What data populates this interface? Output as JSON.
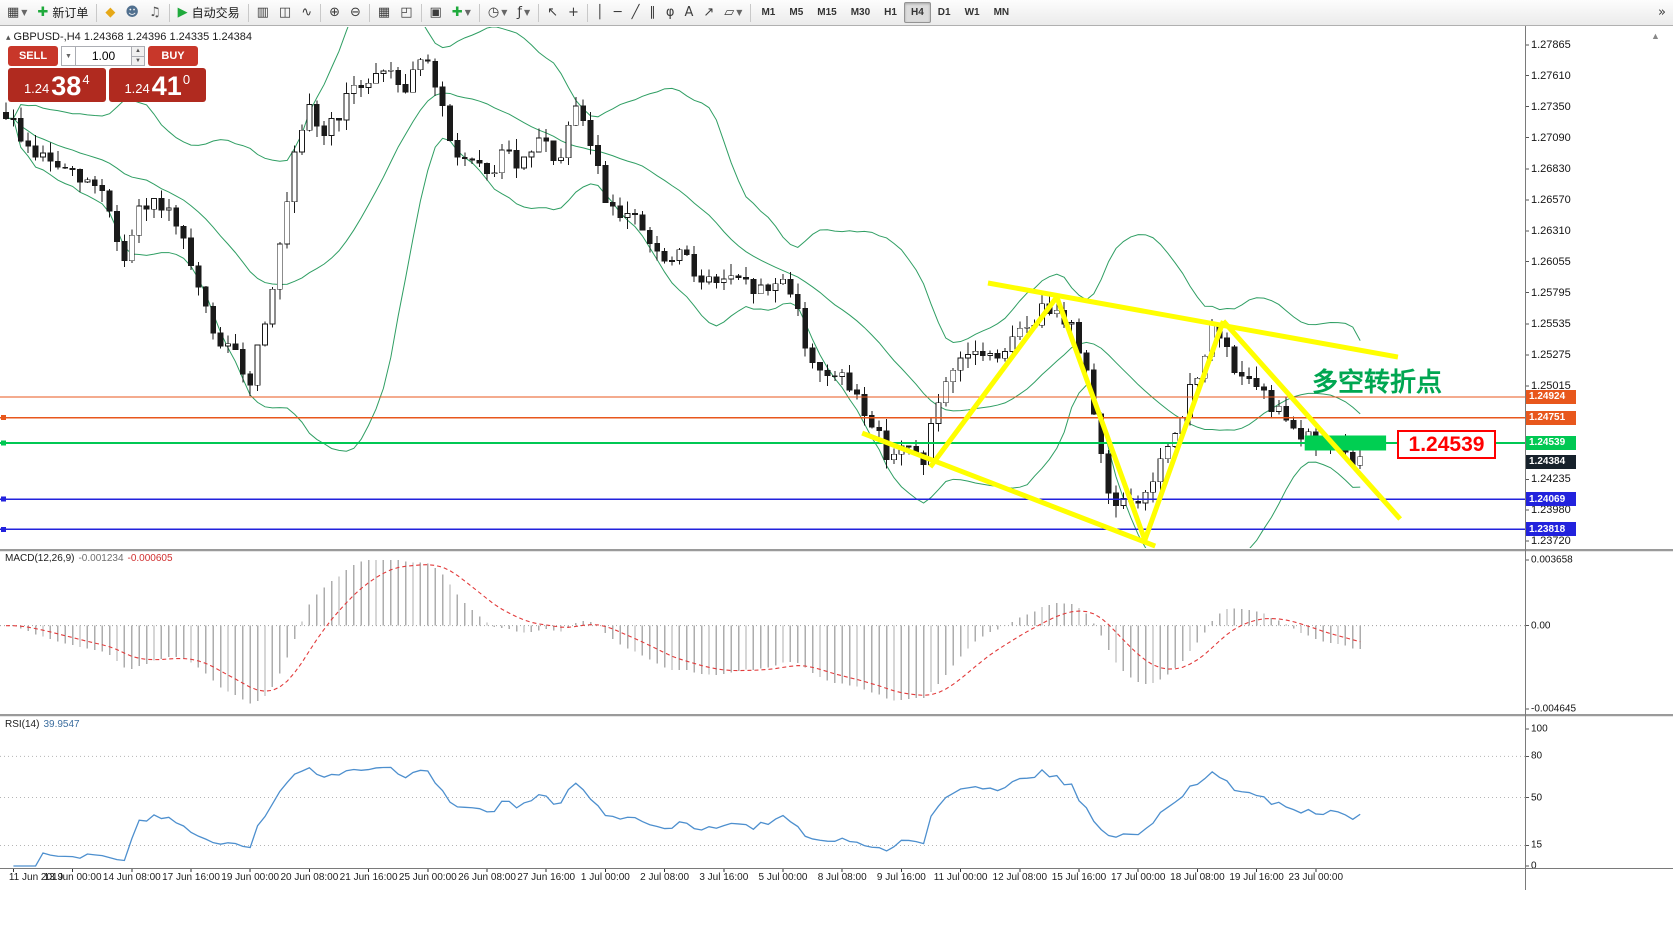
{
  "toolbar": {
    "new_order_label": "新订单",
    "autotrade_label": "自动交易",
    "items": [
      {
        "n": "new-chart-icon",
        "g": "▦",
        "dd": true
      },
      {
        "n": "new-order-button",
        "g": "✚",
        "gc": "#1faa3c",
        "label_key": "new_order_label"
      },
      {
        "sep": true
      },
      {
        "n": "favorites-icon",
        "g": "◆",
        "gc": "#e6a817"
      },
      {
        "n": "profiles-icon",
        "g": "☻",
        "gc": "#51708f"
      },
      {
        "n": "sound-alerts-icon",
        "g": "♫",
        "gc": "#555555"
      },
      {
        "sep": true
      },
      {
        "n": "autotrade-button",
        "g": "▶",
        "gc": "#1faa3c",
        "label_key": "autotrade_label"
      },
      {
        "sep": true
      },
      {
        "n": "bar-chart-icon",
        "g": "▥"
      },
      {
        "n": "candlestick-chart-icon",
        "g": "◫"
      },
      {
        "n": "line-chart-icon",
        "g": "∿"
      },
      {
        "sep": true
      },
      {
        "n": "zoom-in-icon",
        "g": "⊕"
      },
      {
        "n": "zoom-out-icon",
        "g": "⊖"
      },
      {
        "sep": true
      },
      {
        "n": "auto-arrange-icon",
        "g": "▦"
      },
      {
        "n": "tile-windows-icon",
        "g": "◰"
      },
      {
        "sep": true
      },
      {
        "n": "chart-shift-icon",
        "g": "▣"
      },
      {
        "n": "new-order-chart-icon",
        "g": "✚",
        "gc": "#1faa3c",
        "dd": true
      },
      {
        "sep": true
      },
      {
        "n": "periods-icon",
        "g": "◷",
        "dd": true
      },
      {
        "n": "indicators-icon",
        "g": "ƒ",
        "dd": true
      },
      {
        "sep": true
      },
      {
        "n": "cursor-icon",
        "g": "↖"
      },
      {
        "n": "crosshair-icon",
        "g": "+"
      },
      {
        "sep": true
      },
      {
        "n": "vertical-line-icon",
        "g": "│"
      },
      {
        "n": "horizontal-line-icon",
        "g": "─"
      },
      {
        "n": "trendline-icon",
        "g": "╱"
      },
      {
        "n": "channel-icon",
        "g": "∥"
      },
      {
        "n": "fibonacci-icon",
        "g": "φ"
      },
      {
        "n": "text-label-icon",
        "g": "A"
      },
      {
        "n": "arrow-object-icon",
        "g": "↗"
      },
      {
        "n": "shapes-icon",
        "g": "▱",
        "dd": true
      },
      {
        "sep": true
      }
    ],
    "timeframes": [
      "M1",
      "M5",
      "M15",
      "M30",
      "H1",
      "H4",
      "D1",
      "W1",
      "MN"
    ],
    "active_timeframe": "H4",
    "overflow_icon": "»",
    "scroll_icon": "▲"
  },
  "chart": {
    "symbol_info": "GBPUSD-,H4 1.24368 1.24396 1.24335 1.24384",
    "one_click": {
      "sell_label": "SELL",
      "buy_label": "BUY",
      "volume": "1.00",
      "sell_base": "1.24",
      "sell_big": "38",
      "sell_sup": "4",
      "buy_base": "1.24",
      "buy_big": "41",
      "buy_sup": "0"
    },
    "annotation": "多空转折点",
    "annotation_color": "#00a651",
    "callout_price": "1.24539",
    "axis_prices": [
      "1.27865",
      "1.27610",
      "1.27350",
      "1.27090",
      "1.26830",
      "1.26570",
      "1.26310",
      "1.26055",
      "1.25795",
      "1.25535",
      "1.25275",
      "1.25015",
      "1.24235",
      "1.23980",
      "1.23720"
    ],
    "levels": [
      {
        "label": "1.24924",
        "price": 1.24924,
        "color": "#e8571c",
        "handle": false
      },
      {
        "label": "1.24751",
        "price": 1.24751,
        "color": "#e8571c",
        "handle": true
      },
      {
        "label": "1.24539",
        "price": 1.24539,
        "color": "#00c853",
        "handle": true
      },
      {
        "label": "1.24069",
        "price": 1.24069,
        "color": "#2222dd",
        "handle": true
      },
      {
        "label": "1.23818",
        "price": 1.23818,
        "color": "#2222dd",
        "handle": true
      }
    ],
    "bid_marker": {
      "label": "1.24384",
      "price": 1.24384,
      "color": "#16212b"
    },
    "time_labels": [
      "11 Jun 2019",
      "13 Jun 00:00",
      "14 Jun 08:00",
      "17 Jun 16:00",
      "19 Jun 00:00",
      "20 Jun 08:00",
      "21 Jun 16:00",
      "25 Jun 00:00",
      "26 Jun 08:00",
      "27 Jun 16:00",
      "1 Jul 00:00",
      "2 Jul 08:00",
      "3 Jul 16:00",
      "5 Jul 00:00",
      "8 Jul 08:00",
      "9 Jul 16:00",
      "11 Jul 00:00",
      "12 Jul 08:00",
      "15 Jul 16:00",
      "17 Jul 00:00",
      "18 Jul 08:00",
      "19 Jul 16:00",
      "23 Jul 00:00"
    ]
  },
  "indicators": {
    "macd_label": "MACD(12,26,9)",
    "macd_values": [
      "-0.001234",
      "-0.000605"
    ],
    "macd_axis": [
      {
        "t": "0.003658",
        "v": 0.003658
      },
      {
        "t": "0.00",
        "v": 0
      },
      {
        "t": "-0.004645",
        "v": -0.004645
      }
    ],
    "rsi_label": "RSI(14)",
    "rsi_value": "39.9547",
    "rsi_axis": [
      {
        "t": "100",
        "v": 100
      },
      {
        "t": "80",
        "v": 80
      },
      {
        "t": "50",
        "v": 50
      },
      {
        "t": "15",
        "v": 15
      },
      {
        "t": "0",
        "v": 0
      }
    ],
    "rsi_levels": [
      80,
      50,
      15
    ]
  },
  "chart_data": {
    "type": "candlestick",
    "symbol": "GBPUSD-",
    "timeframe": "H4",
    "ohlc_display": {
      "open": "1.24368",
      "high": "1.24396",
      "low": "1.24335",
      "close": "1.24384"
    },
    "visible_range": {
      "price_min": 1.2372,
      "price_max": 1.27865,
      "time_start": "11 Jun 2019",
      "time_end": "23 Jul 2019"
    },
    "candles": 184,
    "price_path_waypoints": [
      [
        0,
        1.273
      ],
      [
        3,
        1.27
      ],
      [
        7,
        1.2685
      ],
      [
        10,
        1.2672
      ],
      [
        13,
        1.2668
      ],
      [
        15,
        1.2625
      ],
      [
        16,
        1.2605
      ],
      [
        18,
        1.2645
      ],
      [
        21,
        1.2655
      ],
      [
        24,
        1.2618
      ],
      [
        26,
        1.258
      ],
      [
        28,
        1.2545
      ],
      [
        31,
        1.2525
      ],
      [
        33,
        1.2507
      ],
      [
        35,
        1.256
      ],
      [
        37,
        1.2615
      ],
      [
        39,
        1.269
      ],
      [
        41,
        1.273
      ],
      [
        43,
        1.2712
      ],
      [
        46,
        1.274
      ],
      [
        49,
        1.276
      ],
      [
        52,
        1.2767
      ],
      [
        54,
        1.275
      ],
      [
        56,
        1.278
      ],
      [
        58,
        1.2752
      ],
      [
        60,
        1.2705
      ],
      [
        62,
        1.269
      ],
      [
        65,
        1.2675
      ],
      [
        67,
        1.2695
      ],
      [
        70,
        1.2685
      ],
      [
        72,
        1.2705
      ],
      [
        75,
        1.269
      ],
      [
        77,
        1.2733
      ],
      [
        79,
        1.2705
      ],
      [
        81,
        1.266
      ],
      [
        83,
        1.265
      ],
      [
        86,
        1.2632
      ],
      [
        88,
        1.2608
      ],
      [
        90,
        1.2604
      ],
      [
        92,
        1.2613
      ],
      [
        94,
        1.2588
      ],
      [
        97,
        1.259
      ],
      [
        100,
        1.2585
      ],
      [
        103,
        1.258
      ],
      [
        105,
        1.2594
      ],
      [
        107,
        1.257
      ],
      [
        108,
        1.2528
      ],
      [
        110,
        1.2518
      ],
      [
        113,
        1.2505
      ],
      [
        115,
        1.2495
      ],
      [
        117,
        1.247
      ],
      [
        119,
        1.2447
      ],
      [
        121,
        1.2448
      ],
      [
        124,
        1.2442
      ],
      [
        126,
        1.2488
      ],
      [
        129,
        1.2518
      ],
      [
        131,
        1.2532
      ],
      [
        133,
        1.2525
      ],
      [
        136,
        1.2538
      ],
      [
        138,
        1.2552
      ],
      [
        140,
        1.2564
      ],
      [
        142,
        1.2572
      ],
      [
        144,
        1.255
      ],
      [
        145,
        1.2532
      ],
      [
        147,
        1.2485
      ],
      [
        148,
        1.2445
      ],
      [
        149,
        1.241
      ],
      [
        151,
        1.2405
      ],
      [
        152,
        1.24
      ],
      [
        154,
        1.2412
      ],
      [
        155,
        1.2422
      ],
      [
        156,
        1.2438
      ],
      [
        158,
        1.2455
      ],
      [
        159,
        1.2472
      ],
      [
        160,
        1.2505
      ],
      [
        162,
        1.2522
      ],
      [
        163,
        1.2548
      ],
      [
        164,
        1.2542
      ],
      [
        166,
        1.252
      ],
      [
        167,
        1.2512
      ],
      [
        168,
        1.25
      ],
      [
        170,
        1.2492
      ],
      [
        171,
        1.2483
      ],
      [
        172,
        1.249
      ],
      [
        174,
        1.2468
      ],
      [
        175,
        1.2462
      ],
      [
        177,
        1.2455
      ],
      [
        178,
        1.245
      ],
      [
        179,
        1.2455
      ],
      [
        181,
        1.244
      ],
      [
        183,
        1.24384
      ]
    ],
    "bollinger": {
      "period": 20,
      "deviation": 2
    },
    "macd": {
      "fast": 12,
      "slow": 26,
      "signal": 9,
      "current": -0.001234,
      "current_signal": -0.000605,
      "scale_max": 0.003658,
      "scale_min": -0.004645
    },
    "rsi": {
      "period": 14,
      "current": 39.9547
    },
    "horizontal_lines": [
      1.24924,
      1.24751,
      1.24539,
      1.24069,
      1.23818
    ],
    "bid_price": 1.24384,
    "highlight_band": {
      "from_i": 175.5,
      "to_i": 186.5,
      "price": 1.24539
    },
    "yellow_trendlines": [
      {
        "from": [
          132.7,
          1.25876
        ],
        "to": [
          188.1,
          1.25257
        ]
      },
      {
        "from": [
          115.7,
          1.24622
        ],
        "to": [
          155.3,
          1.23678
        ]
      },
      {
        "from": [
          124.9,
          1.24338
        ],
        "to": [
          142.0,
          1.25759
        ]
      },
      {
        "from": [
          142.0,
          1.25759
        ],
        "to": [
          153.9,
          1.23728
        ]
      },
      {
        "from": [
          153.9,
          1.23728
        ],
        "to": [
          164.5,
          1.25558
        ]
      },
      {
        "from": [
          164.5,
          1.25558
        ],
        "to": [
          188.4,
          1.23904
        ]
      }
    ]
  }
}
